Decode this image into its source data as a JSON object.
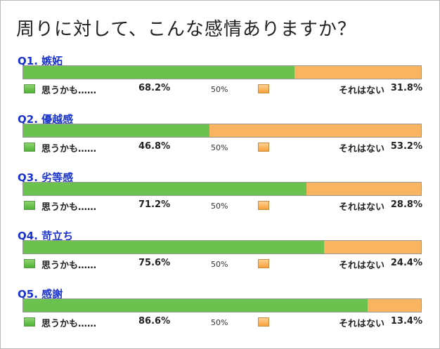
{
  "title": "周りに対して、こんな感情ありますか？",
  "legend": {
    "yes_label": "思うかも……",
    "no_label": "それはない",
    "midpoint": "50%"
  },
  "colors": {
    "yes": "#6cc24e",
    "no": "#f8b460",
    "question": "#1a33cc"
  },
  "chart_data": {
    "type": "bar",
    "orientation": "horizontal-stacked-100",
    "categories": [
      "Q1. 嫉妬",
      "Q2. 優越感",
      "Q3. 劣等感",
      "Q4. 苛立ち",
      "Q5. 感謝"
    ],
    "series": [
      {
        "name": "思うかも……",
        "values": [
          68.2,
          46.8,
          71.2,
          75.6,
          86.6
        ]
      },
      {
        "name": "それはない",
        "values": [
          31.8,
          53.2,
          28.8,
          24.4,
          13.4
        ]
      }
    ],
    "value_labels_yes": [
      "68.2%",
      "46.8%",
      "71.2%",
      "75.6%",
      "86.6%"
    ],
    "value_labels_no": [
      "31.8%",
      "53.2%",
      "28.8%",
      "24.4%",
      "13.4%"
    ],
    "xlim": [
      0,
      100
    ]
  }
}
